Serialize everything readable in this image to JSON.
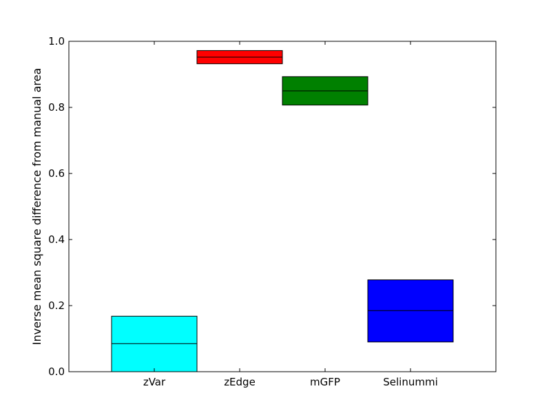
{
  "chart_data": {
    "type": "bar",
    "title": "",
    "xlabel": "",
    "ylabel": "Inverse mean square difference from manual area",
    "ylim": [
      0.0,
      1.0
    ],
    "yticks": [
      "0.0",
      "0.2",
      "0.4",
      "0.6",
      "0.8",
      "1.0"
    ],
    "grid": false,
    "categories": [
      "zVar",
      "zEdge",
      "mGFP",
      "Selinummi"
    ],
    "boxes": [
      {
        "category": "zVar",
        "low": 0.0,
        "high": 0.168,
        "median": 0.085,
        "color": "#00ffff"
      },
      {
        "category": "zEdge",
        "low": 0.932,
        "high": 0.972,
        "median": 0.952,
        "color": "#ff0000"
      },
      {
        "category": "mGFP",
        "low": 0.807,
        "high": 0.893,
        "median": 0.85,
        "color": "#008000"
      },
      {
        "category": "Selinummi",
        "low": 0.09,
        "high": 0.278,
        "median": 0.185,
        "color": "#0000ff"
      }
    ]
  }
}
